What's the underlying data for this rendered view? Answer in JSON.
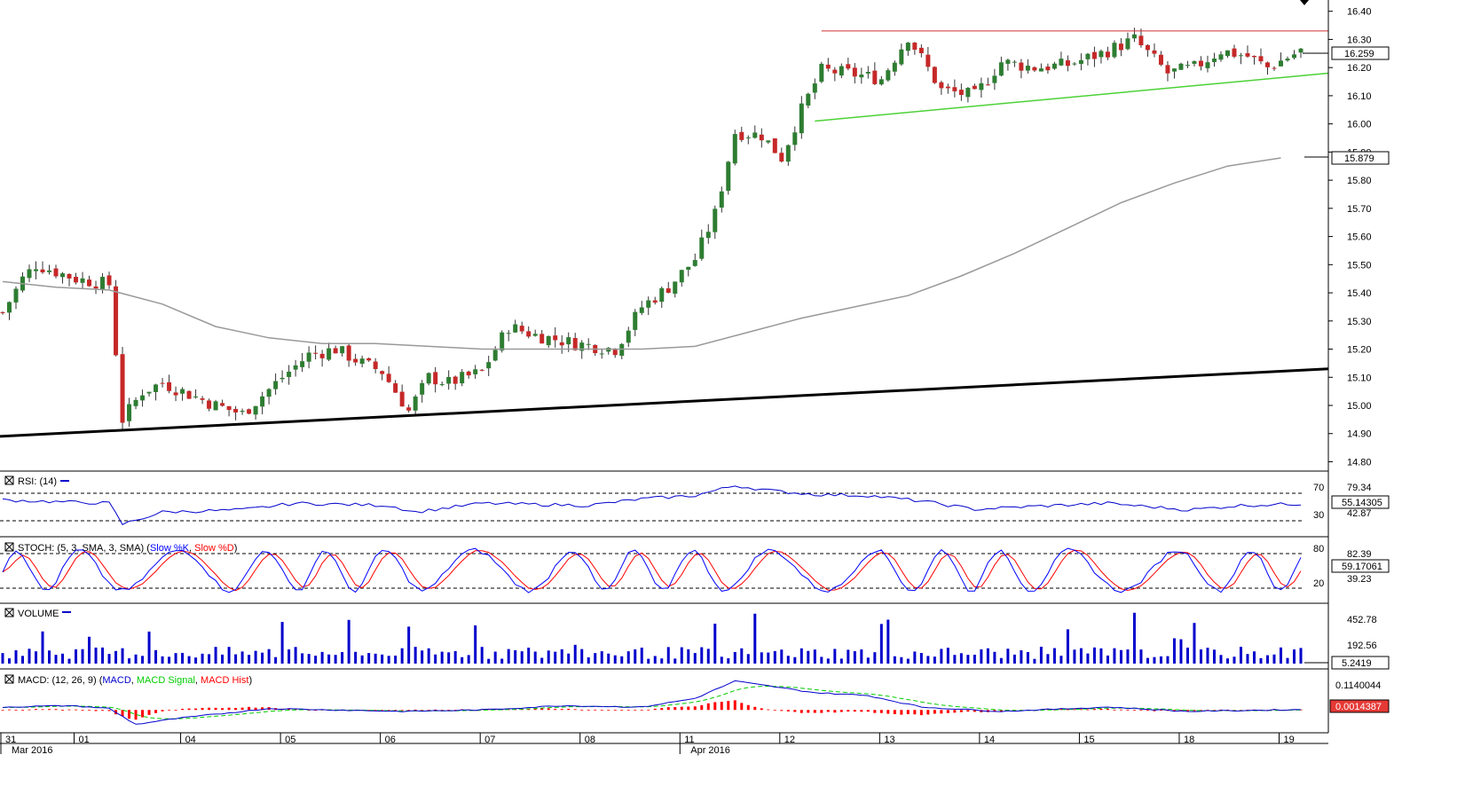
{
  "colors": {
    "up": "#2e7d32",
    "down": "#c62828",
    "wick": "#333333",
    "ma": "#999999",
    "support": "#000000",
    "resistance": "#d32f2f",
    "trend_green": "#4cd137",
    "rsi": "#0000cc",
    "stoch_k": "#0000ff",
    "stoch_d": "#ff0000",
    "volume": "#0000cc",
    "macd": "#0000cc",
    "macd_signal": "#00cc00",
    "macd_hist": "#ff0000"
  },
  "chart_data": {
    "type": "candlestick",
    "price_axis": {
      "ticks": [
        "16.40",
        "16.30",
        "16.20",
        "16.10",
        "16.00",
        "15.90",
        "15.80",
        "15.70",
        "15.60",
        "15.50",
        "15.40",
        "15.30",
        "15.20",
        "15.10",
        "15.00",
        "14.90",
        "14.80"
      ],
      "range": [
        14.77,
        16.44
      ],
      "last_price_label": "16.259",
      "last_price": 16.259,
      "ma_label": "15.879",
      "ma_value": 15.879
    },
    "x_axis": {
      "day_labels": [
        "31",
        "01",
        "04",
        "05",
        "06",
        "07",
        "08",
        "11",
        "12",
        "13",
        "14",
        "15",
        "18",
        "19"
      ],
      "day_start_index": [
        0,
        11,
        27,
        42,
        57,
        72,
        87,
        102,
        117,
        132,
        147,
        162,
        177,
        192
      ],
      "month_labels": [
        "Mar 2016",
        "Apr 2016"
      ],
      "month_start_index": [
        0,
        102
      ]
    },
    "candle_count": 196,
    "anchors": [
      [
        0,
        15.33
      ],
      [
        3,
        15.45
      ],
      [
        5,
        15.5
      ],
      [
        11,
        15.45
      ],
      [
        16,
        15.43
      ],
      [
        18,
        14.95
      ],
      [
        21,
        15.05
      ],
      [
        24,
        15.08
      ],
      [
        27,
        15.05
      ],
      [
        32,
        15.0
      ],
      [
        36,
        14.97
      ],
      [
        42,
        15.1
      ],
      [
        46,
        15.18
      ],
      [
        50,
        15.2
      ],
      [
        54,
        15.15
      ],
      [
        57,
        15.12
      ],
      [
        61,
        14.98
      ],
      [
        64,
        15.1
      ],
      [
        67,
        15.08
      ],
      [
        72,
        15.12
      ],
      [
        76,
        15.28
      ],
      [
        80,
        15.25
      ],
      [
        86,
        15.22
      ],
      [
        92,
        15.2
      ],
      [
        96,
        15.35
      ],
      [
        100,
        15.42
      ],
      [
        104,
        15.52
      ],
      [
        107,
        15.68
      ],
      [
        110,
        15.97
      ],
      [
        114,
        15.96
      ],
      [
        117,
        15.88
      ],
      [
        120,
        16.05
      ],
      [
        123,
        16.19
      ],
      [
        127,
        16.18
      ],
      [
        132,
        16.16
      ],
      [
        136,
        16.31
      ],
      [
        141,
        16.12
      ],
      [
        146,
        16.1
      ],
      [
        150,
        16.22
      ],
      [
        155,
        16.2
      ],
      [
        160,
        16.21
      ],
      [
        165,
        16.25
      ],
      [
        170,
        16.3
      ],
      [
        175,
        16.18
      ],
      [
        179,
        16.2
      ],
      [
        183,
        16.26
      ],
      [
        187,
        16.24
      ],
      [
        190,
        16.2
      ],
      [
        195,
        16.26
      ]
    ],
    "ma_line": [
      [
        0,
        15.44
      ],
      [
        8,
        15.42
      ],
      [
        16,
        15.41
      ],
      [
        24,
        15.36
      ],
      [
        32,
        15.28
      ],
      [
        40,
        15.24
      ],
      [
        48,
        15.22
      ],
      [
        56,
        15.22
      ],
      [
        64,
        15.21
      ],
      [
        72,
        15.2
      ],
      [
        80,
        15.2
      ],
      [
        88,
        15.2
      ],
      [
        96,
        15.2
      ],
      [
        104,
        15.21
      ],
      [
        112,
        15.26
      ],
      [
        120,
        15.31
      ],
      [
        128,
        15.35
      ],
      [
        136,
        15.39
      ],
      [
        144,
        15.46
      ],
      [
        152,
        15.54
      ],
      [
        160,
        15.63
      ],
      [
        168,
        15.72
      ],
      [
        176,
        15.79
      ],
      [
        184,
        15.85
      ],
      [
        192,
        15.879
      ]
    ],
    "support_line": [
      [
        0,
        14.89
      ],
      [
        195,
        15.13
      ]
    ],
    "resistance_line": [
      [
        123,
        16.33
      ],
      [
        195,
        16.33
      ]
    ],
    "green_trendline": [
      [
        122,
        16.01
      ],
      [
        195,
        16.18
      ]
    ],
    "indicators": {
      "rsi": {
        "label": "RSI: (14)",
        "levels": [
          "70",
          "30"
        ],
        "axis_label": "79.34",
        "axis_label_2": "42.87",
        "current": "55.14305",
        "anchors": [
          [
            0,
            62
          ],
          [
            10,
            58
          ],
          [
            16,
            56
          ],
          [
            18,
            18
          ],
          [
            24,
            40
          ],
          [
            36,
            44
          ],
          [
            44,
            56
          ],
          [
            58,
            52
          ],
          [
            62,
            40
          ],
          [
            72,
            56
          ],
          [
            88,
            52
          ],
          [
            96,
            64
          ],
          [
            104,
            70
          ],
          [
            110,
            88
          ],
          [
            116,
            78
          ],
          [
            122,
            72
          ],
          [
            130,
            70
          ],
          [
            138,
            60
          ],
          [
            146,
            45
          ],
          [
            154,
            50
          ],
          [
            166,
            56
          ],
          [
            178,
            44
          ],
          [
            186,
            52
          ],
          [
            195,
            55
          ]
        ]
      },
      "stochastic": {
        "label": "STOCH: (5, 3, SMA, 3, SMA)",
        "k_label": "Slow %K",
        "d_label": "Slow %D",
        "levels": [
          "80",
          "20"
        ],
        "axis_label": "82.39",
        "axis_label_2": "39.23",
        "current": "59.17061"
      },
      "volume": {
        "label": "VOLUME",
        "axis_label": "452.78",
        "axis_label_2": "192.56",
        "current": "5.2419"
      },
      "macd": {
        "label": "MACD: (12, 26, 9)",
        "macd_label": "MACD",
        "signal_label": "MACD Signal",
        "hist_label": "MACD Hist",
        "axis_label": "0.1140044",
        "current": "0.0014387",
        "anchors": [
          [
            0,
            0.01
          ],
          [
            10,
            0.015
          ],
          [
            16,
            0.005
          ],
          [
            20,
            -0.05
          ],
          [
            26,
            -0.03
          ],
          [
            40,
            0.005
          ],
          [
            60,
            -0.005
          ],
          [
            72,
            0.0
          ],
          [
            84,
            0.015
          ],
          [
            96,
            0.01
          ],
          [
            104,
            0.04
          ],
          [
            110,
            0.1
          ],
          [
            116,
            0.08
          ],
          [
            122,
            0.06
          ],
          [
            130,
            0.05
          ],
          [
            138,
            0.01
          ],
          [
            150,
            -0.005
          ],
          [
            166,
            0.01
          ],
          [
            178,
            -0.005
          ],
          [
            195,
            0.0014
          ]
        ]
      }
    }
  }
}
